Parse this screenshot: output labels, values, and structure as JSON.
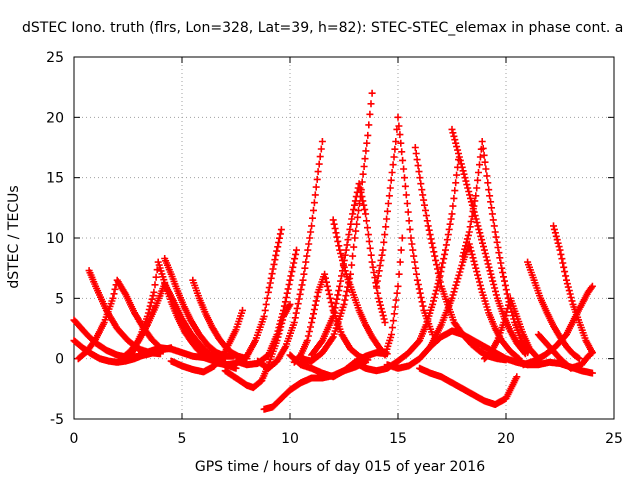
{
  "chart_data": {
    "type": "scatter",
    "title": "dSTEC Iono. truth (flrs, Lon=328, Lat=39, h=82): STEC-STEC_elemax in phase cont. a",
    "xlabel": "GPS time / hours of day 015 of year 2016",
    "ylabel": "dSTEC  / TECUs",
    "xlim": [
      0,
      25
    ],
    "ylim": [
      -5,
      25
    ],
    "xticks": [
      0,
      5,
      10,
      15,
      20,
      25
    ],
    "yticks": [
      -5,
      0,
      5,
      10,
      15,
      20,
      25
    ],
    "grid": true,
    "marker": "+",
    "color": "#ff0000",
    "series": [
      {
        "x": [
          0.0,
          0.4,
          0.8,
          1.2,
          1.6,
          2.0,
          2.4,
          2.8,
          3.2,
          3.4
        ],
        "y": [
          1.5,
          0.9,
          0.4,
          0.0,
          -0.2,
          -0.3,
          -0.2,
          0.0,
          0.3,
          0.5
        ]
      },
      {
        "x": [
          0.0,
          0.3,
          0.6,
          1.0,
          1.5,
          2.0,
          2.5,
          3.0,
          3.5,
          4.0,
          4.5
        ],
        "y": [
          3.2,
          2.6,
          2.0,
          1.3,
          0.7,
          0.3,
          0.1,
          0.2,
          0.4,
          0.7,
          0.9
        ]
      },
      {
        "x": [
          0.7,
          1.0,
          1.5,
          2.0,
          2.5,
          3.0,
          3.5,
          4.0
        ],
        "y": [
          7.3,
          6.0,
          4.0,
          2.5,
          1.5,
          0.8,
          0.5,
          0.4
        ]
      },
      {
        "x": [
          0.2,
          0.6,
          1.0,
          1.4,
          1.8,
          2.0,
          2.4,
          2.8,
          3.2,
          3.6,
          4.0
        ],
        "y": [
          0.0,
          0.6,
          1.6,
          3.0,
          5.0,
          6.5,
          5.3,
          3.8,
          2.6,
          1.6,
          0.9
        ]
      },
      {
        "x": [
          2.2,
          2.6,
          3.0,
          3.4,
          3.8,
          4.2,
          4.6,
          5.0,
          5.4,
          5.8,
          6.2,
          6.6,
          7.0
        ],
        "y": [
          0.0,
          0.6,
          1.5,
          2.8,
          4.4,
          6.2,
          4.8,
          3.3,
          2.1,
          1.2,
          0.5,
          0.0,
          -0.3
        ]
      },
      {
        "x": [
          2.5,
          2.8,
          3.1,
          3.4,
          3.7,
          3.9,
          4.2,
          4.5,
          4.8,
          5.1,
          5.4,
          5.7,
          6.0,
          6.3,
          6.6
        ],
        "y": [
          0.0,
          0.8,
          2.0,
          3.5,
          5.5,
          8.0,
          6.3,
          4.7,
          3.4,
          2.3,
          1.5,
          0.8,
          0.3,
          0.0,
          -0.2
        ]
      },
      {
        "x": [
          4.2,
          4.5,
          4.8,
          5.1,
          5.4,
          5.8,
          6.2,
          6.6,
          7.0,
          7.4
        ],
        "y": [
          8.3,
          7.0,
          5.6,
          4.3,
          3.2,
          2.0,
          1.1,
          0.5,
          0.2,
          0.2
        ]
      },
      {
        "x": [
          5.5,
          5.8,
          6.1,
          6.4,
          6.7,
          7.0,
          7.3,
          7.6,
          8.0
        ],
        "y": [
          6.5,
          5.0,
          3.7,
          2.6,
          1.7,
          1.0,
          0.5,
          0.2,
          0.0
        ]
      },
      {
        "x": [
          4.5,
          5.0,
          5.5,
          6.0,
          6.5,
          7.0,
          7.5,
          7.8
        ],
        "y": [
          -0.2,
          -0.6,
          -0.9,
          -1.1,
          -0.6,
          0.6,
          2.4,
          4.0
        ]
      },
      {
        "x": [
          3.0,
          3.5,
          4.0,
          4.5,
          5.0,
          5.5,
          6.0,
          6.5,
          7.0,
          7.5
        ],
        "y": [
          0.3,
          0.6,
          0.9,
          0.8,
          0.5,
          0.2,
          0.1,
          -0.2,
          -0.5,
          -0.8
        ]
      },
      {
        "x": [
          6.5,
          7.0,
          7.5,
          8.0,
          8.4,
          8.8,
          9.0,
          9.3,
          9.6
        ],
        "y": [
          -0.3,
          -0.5,
          -0.4,
          0.2,
          1.5,
          3.5,
          5.5,
          8.2,
          10.7
        ]
      },
      {
        "x": [
          7.5,
          8.0,
          8.5,
          9.0,
          9.4,
          9.7,
          10.0,
          10.3
        ],
        "y": [
          -0.2,
          -0.5,
          -0.4,
          0.3,
          2.0,
          4.0,
          6.5,
          9.0
        ]
      },
      {
        "x": [
          7.0,
          7.5,
          8.0,
          8.3,
          8.7,
          9.0,
          9.4,
          9.7,
          10.0
        ],
        "y": [
          -1.0,
          -1.6,
          -2.2,
          -2.4,
          -1.8,
          -0.5,
          1.5,
          3.5,
          4.5
        ]
      },
      {
        "x": [
          8.5,
          9.0,
          9.4,
          9.8,
          10.2,
          10.6,
          11.0,
          11.3,
          11.5
        ],
        "y": [
          -0.2,
          -0.8,
          -0.2,
          1.0,
          3.0,
          6.5,
          11.0,
          15.5,
          18.0
        ]
      },
      {
        "x": [
          8.8,
          9.2,
          9.6,
          10.0,
          10.5,
          11.0,
          11.5,
          12.0,
          12.5,
          13.0,
          13.5
        ],
        "y": [
          -4.2,
          -4.0,
          -3.3,
          -2.6,
          -2.0,
          -1.6,
          -1.6,
          -1.4,
          -1.0,
          -0.7,
          -0.3
        ]
      },
      {
        "x": [
          10.2,
          10.5,
          10.8,
          11.0,
          11.3,
          11.6,
          12.0,
          12.4,
          12.8,
          13.2,
          13.6
        ],
        "y": [
          -0.3,
          0.3,
          1.5,
          3.0,
          5.5,
          7.0,
          4.0,
          2.0,
          0.8,
          0.2,
          -0.1
        ]
      },
      {
        "x": [
          10.0,
          10.5,
          11.0,
          11.5,
          12.0,
          12.5,
          13.0,
          13.5,
          14.0,
          14.5
        ],
        "y": [
          0.3,
          -0.5,
          -0.8,
          -1.2,
          -1.5,
          -1.0,
          -0.3,
          0.2,
          0.5,
          0.4
        ]
      },
      {
        "x": [
          10.5,
          11.0,
          11.5,
          12.0,
          12.5,
          12.8,
          13.0,
          13.3,
          13.6,
          13.8
        ],
        "y": [
          0.0,
          -0.2,
          0.5,
          1.8,
          4.5,
          7.0,
          10.0,
          14.0,
          18.5,
          22.0
        ]
      },
      {
        "x": [
          11.0,
          11.5,
          12.0,
          12.3,
          12.6,
          12.9,
          13.2,
          13.5,
          13.8,
          14.1,
          14.4
        ],
        "y": [
          0.3,
          1.5,
          3.5,
          6.0,
          9.0,
          12.0,
          14.5,
          12.0,
          8.0,
          5.0,
          3.0
        ]
      },
      {
        "x": [
          12.0,
          12.3,
          12.6,
          12.9,
          13.2,
          13.5,
          13.8,
          14.1,
          14.4,
          14.7,
          15.0,
          15.2
        ],
        "y": [
          11.5,
          9.0,
          7.0,
          5.5,
          4.0,
          2.8,
          1.8,
          1.0,
          0.3,
          2.0,
          6.0,
          10.0
        ]
      },
      {
        "x": [
          14.0,
          14.3,
          14.6,
          14.9,
          15.0,
          15.3,
          15.6,
          15.9,
          16.2,
          16.6
        ],
        "y": [
          6.0,
          9.0,
          13.5,
          18.0,
          20.0,
          15.0,
          10.0,
          6.5,
          4.0,
          2.0
        ]
      },
      {
        "x": [
          13.0,
          13.5,
          14.0,
          14.5,
          15.0,
          15.5,
          16.0,
          16.3,
          16.6,
          16.9,
          17.2,
          17.5,
          17.8
        ],
        "y": [
          -0.3,
          -0.8,
          -1.0,
          -0.8,
          -0.2,
          0.5,
          1.5,
          2.8,
          4.5,
          6.5,
          9.0,
          12.0,
          16.5
        ]
      },
      {
        "x": [
          15.8,
          16.1,
          16.4,
          16.7,
          17.0,
          17.3,
          17.6,
          18.0,
          18.4,
          18.8,
          19.2,
          19.6,
          20.0
        ],
        "y": [
          17.5,
          14.0,
          11.0,
          8.5,
          6.0,
          4.5,
          3.0,
          2.0,
          1.2,
          0.6,
          0.2,
          0.0,
          -0.1
        ]
      },
      {
        "x": [
          14.5,
          15.0,
          15.5,
          16.0,
          16.5,
          17.0,
          17.5,
          18.0,
          18.3,
          18.6,
          18.9,
          19.2,
          19.5,
          19.8,
          20.2,
          20.6
        ],
        "y": [
          -0.5,
          -0.8,
          -0.6,
          0.0,
          1.0,
          2.8,
          5.0,
          8.0,
          9.5,
          7.5,
          5.5,
          3.8,
          2.5,
          1.5,
          0.6,
          0.0
        ]
      },
      {
        "x": [
          17.5,
          17.8,
          18.1,
          18.4,
          18.7,
          19.0,
          19.3,
          19.6,
          19.9,
          20.2,
          20.5,
          20.9
        ],
        "y": [
          19.0,
          17.0,
          15.0,
          13.0,
          11.0,
          9.0,
          7.0,
          5.0,
          3.5,
          2.3,
          1.3,
          0.4
        ]
      },
      {
        "x": [
          18.0,
          18.3,
          18.6,
          18.9,
          19.2,
          19.5,
          19.8,
          20.1,
          20.4,
          20.7,
          21.0
        ],
        "y": [
          8.5,
          10.5,
          13.5,
          18.0,
          14.0,
          10.5,
          7.5,
          5.0,
          3.0,
          1.5,
          0.5
        ]
      },
      {
        "x": [
          16.0,
          16.5,
          17.0,
          17.5,
          18.0,
          18.5,
          19.0,
          19.5,
          20.0,
          20.5
        ],
        "y": [
          -0.8,
          -1.2,
          -1.5,
          -2.0,
          -2.5,
          -3.0,
          -3.5,
          -3.8,
          -3.3,
          -1.5
        ]
      },
      {
        "x": [
          16.5,
          17.0,
          17.5,
          18.0,
          18.5,
          19.0,
          19.5,
          20.0,
          20.5,
          21.0
        ],
        "y": [
          1.0,
          1.8,
          2.3,
          2.0,
          1.5,
          1.0,
          0.5,
          0.0,
          -0.3,
          -0.5
        ]
      },
      {
        "x": [
          20.5,
          21.0,
          21.5,
          22.0,
          22.5,
          23.0,
          23.5,
          24.0
        ],
        "y": [
          -0.2,
          -0.5,
          -0.5,
          -0.3,
          -0.4,
          -0.7,
          -1.0,
          -1.2
        ]
      },
      {
        "x": [
          21.0,
          21.3,
          21.6,
          21.9,
          22.2,
          22.5,
          22.8,
          23.1,
          23.4
        ],
        "y": [
          8.0,
          6.5,
          5.0,
          3.8,
          2.7,
          1.8,
          1.0,
          0.4,
          0.0
        ]
      },
      {
        "x": [
          22.2,
          22.5,
          22.8,
          23.1,
          23.4,
          23.7,
          24.0
        ],
        "y": [
          11.0,
          9.0,
          6.5,
          4.5,
          3.0,
          1.5,
          0.5
        ]
      },
      {
        "x": [
          20.8,
          21.3,
          21.8,
          22.3,
          22.8,
          23.3,
          23.8,
          24.0
        ],
        "y": [
          -0.5,
          -0.2,
          0.3,
          1.0,
          2.0,
          3.8,
          5.5,
          6.0
        ]
      },
      {
        "x": [
          21.5,
          22.0,
          22.5,
          23.0,
          23.5,
          23.8,
          24.0
        ],
        "y": [
          2.0,
          1.0,
          0.0,
          -0.8,
          -0.5,
          0.2,
          0.5
        ]
      },
      {
        "x": [
          19.0,
          19.3,
          19.6,
          19.9,
          20.2,
          20.5,
          20.8,
          21.1,
          21.5
        ],
        "y": [
          0.0,
          0.5,
          1.5,
          3.0,
          5.0,
          3.5,
          2.0,
          0.8,
          0.0
        ]
      }
    ]
  }
}
